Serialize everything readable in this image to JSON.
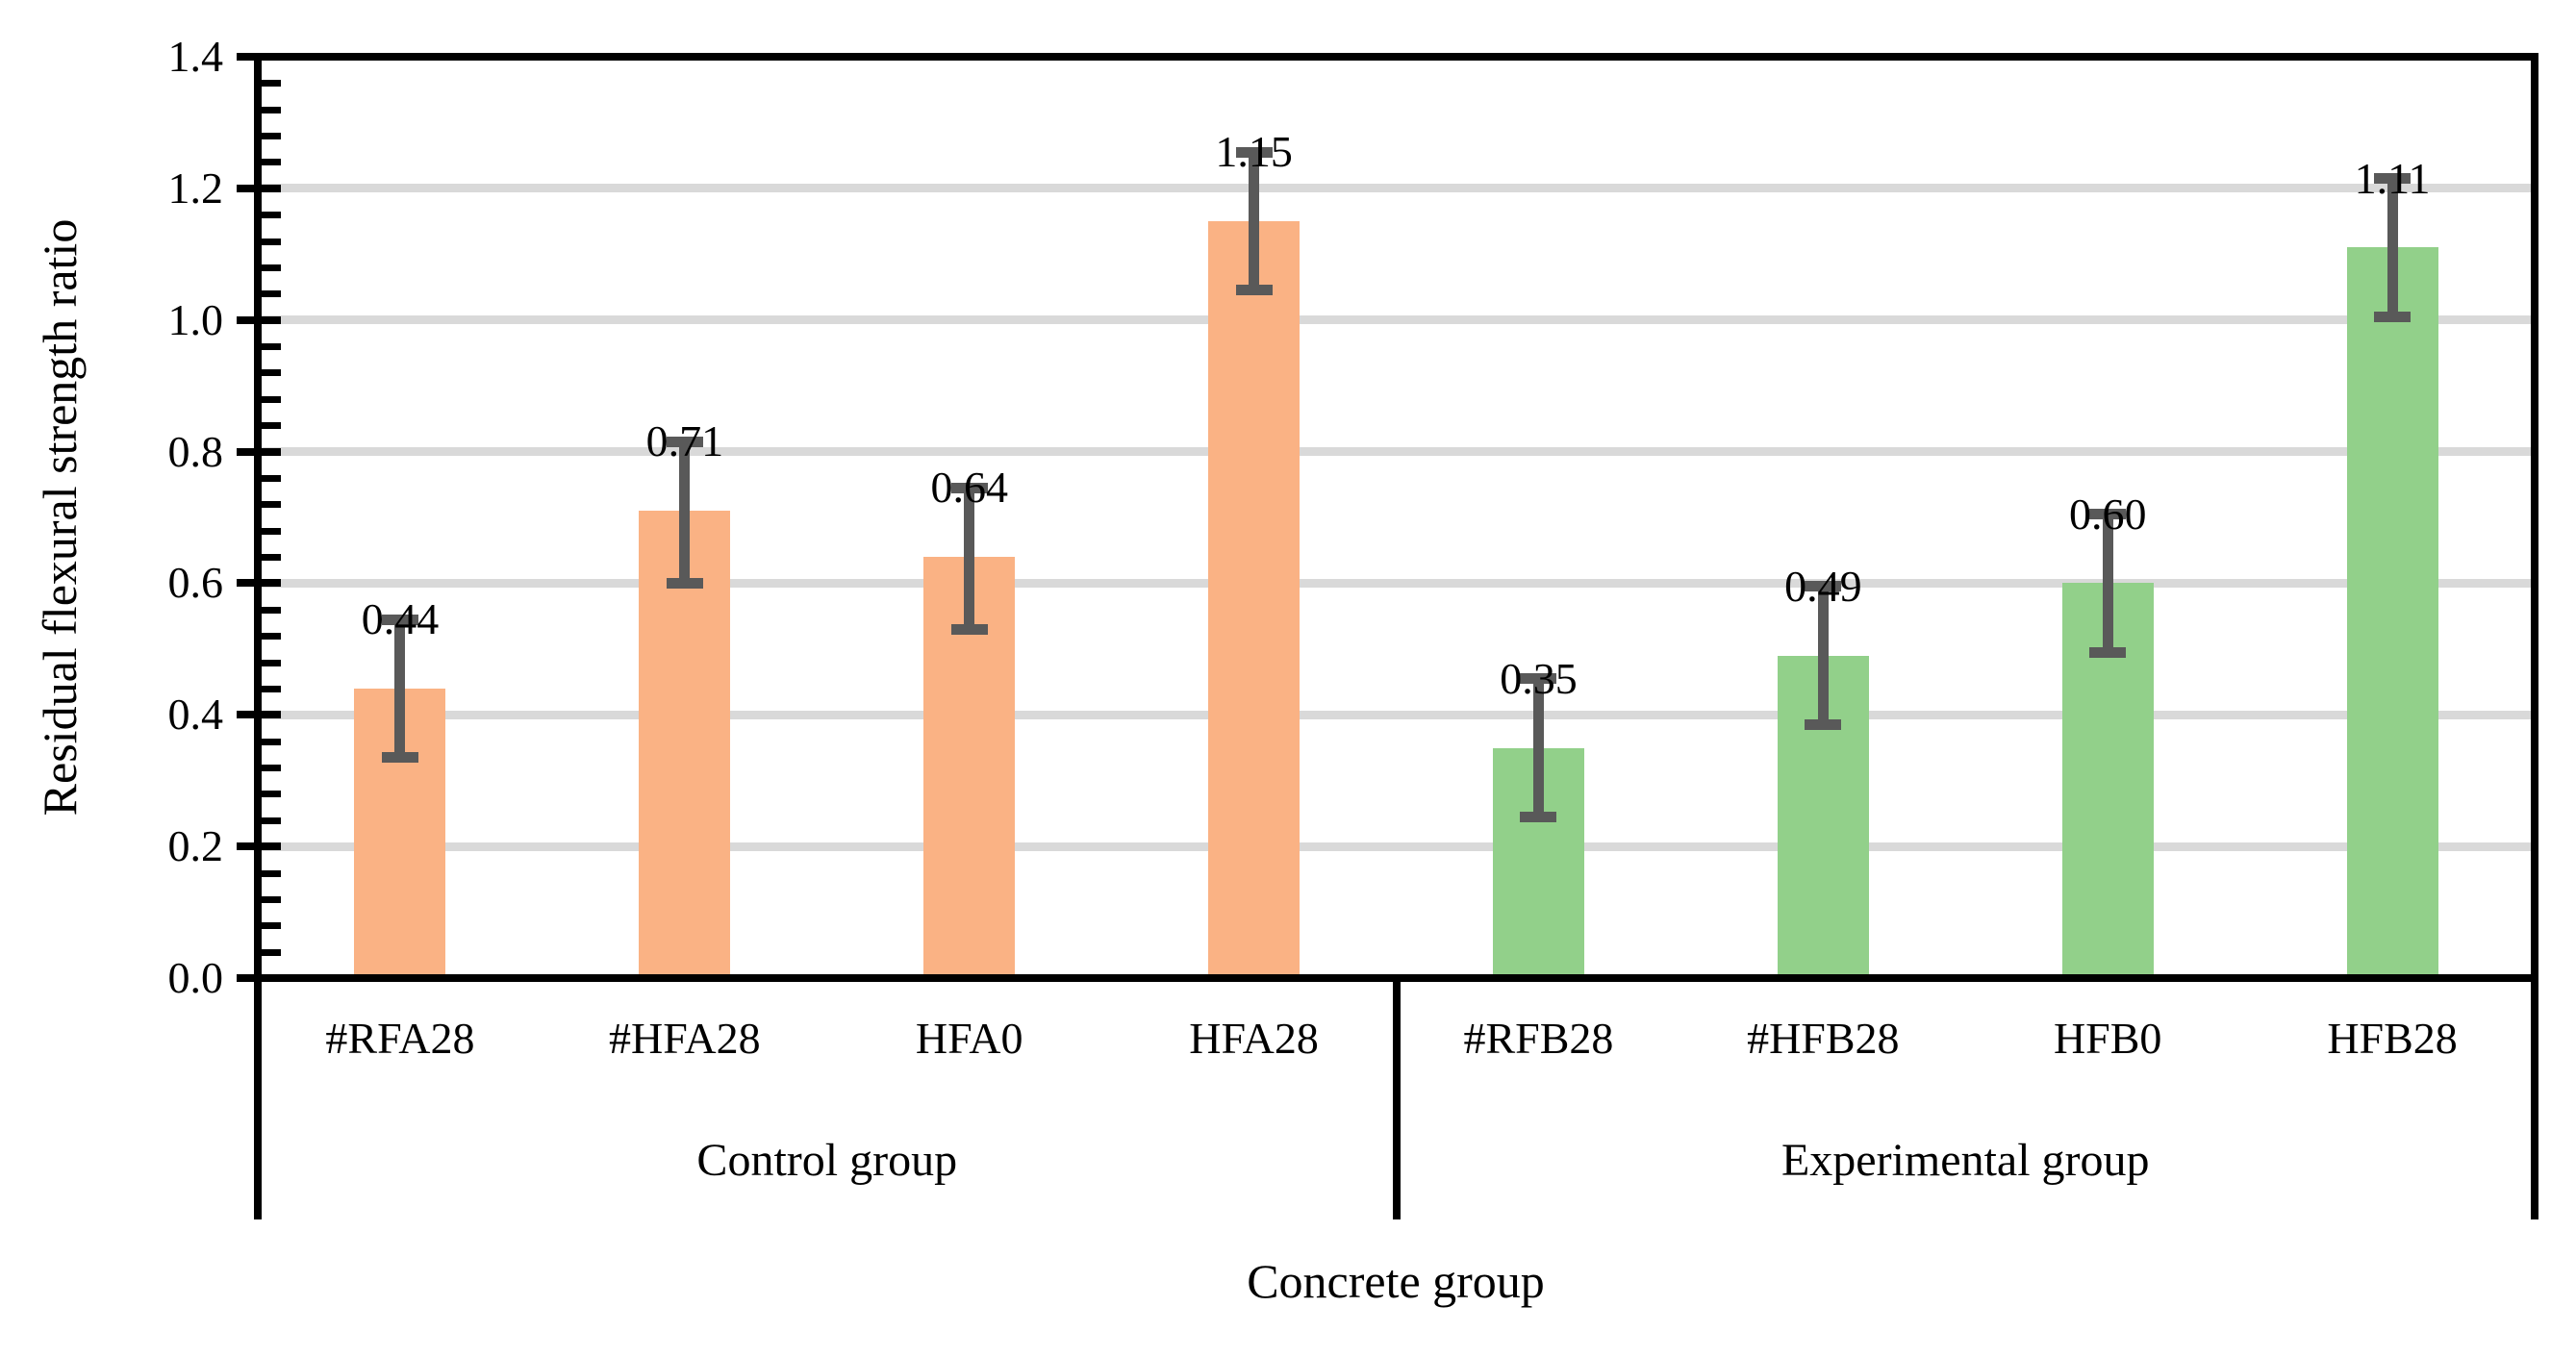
{
  "chart_data": {
    "type": "bar",
    "title": "",
    "ylabel": "Residual flexural strength ratio",
    "xlabel": "Concrete group",
    "ylim": [
      0.0,
      1.4
    ],
    "y_major_unit": 0.2,
    "y_minor_unit": 0.04,
    "y_tick_labels": [
      "0.0",
      "0.2",
      "0.4",
      "0.6",
      "0.8",
      "1.0",
      "1.2",
      "1.4"
    ],
    "grid": {
      "horizontal_major": true,
      "color": "#D9D9D9"
    },
    "legend_position": "none",
    "axis_color": "#000000",
    "error_bars": {
      "color": "#595959"
    },
    "groups": [
      {
        "label": "Control group",
        "bar_color": "#FAB284",
        "bars": [
          {
            "category": "#RFA28",
            "value": 0.44,
            "data_label": "0.44",
            "whisker_top": 0.545,
            "whisker_bottom": 0.335
          },
          {
            "category": "#HFA28",
            "value": 0.71,
            "data_label": "0.71",
            "whisker_top": 0.815,
            "whisker_bottom": 0.6
          },
          {
            "category": "HFA0",
            "value": 0.64,
            "data_label": "0.64",
            "whisker_top": 0.745,
            "whisker_bottom": 0.53
          },
          {
            "category": "HFA28",
            "value": 1.15,
            "data_label": "1.15",
            "whisker_top": 1.255,
            "whisker_bottom": 1.045
          }
        ]
      },
      {
        "label": "Experimental group",
        "bar_color": "#92D08A",
        "bars": [
          {
            "category": "#RFB28",
            "value": 0.35,
            "data_label": "0.35",
            "whisker_top": 0.455,
            "whisker_bottom": 0.245
          },
          {
            "category": "#HFB28",
            "value": 0.49,
            "data_label": "0.49",
            "whisker_top": 0.595,
            "whisker_bottom": 0.385
          },
          {
            "category": "HFB0",
            "value": 0.6,
            "data_label": "0.60",
            "whisker_top": 0.705,
            "whisker_bottom": 0.495
          },
          {
            "category": "HFB28",
            "value": 1.11,
            "data_label": "1.11",
            "whisker_top": 1.215,
            "whisker_bottom": 1.005
          }
        ]
      }
    ]
  }
}
